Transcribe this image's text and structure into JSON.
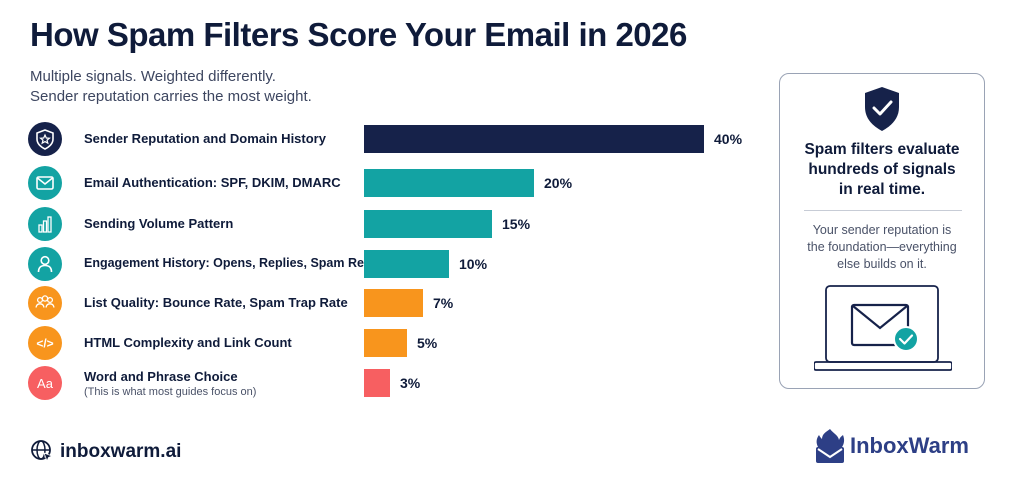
{
  "title": "How Spam Filters Score Your Email in 2026",
  "subtitle_lines": [
    "Multiple signals. Weighted differently.",
    "Sender reputation carries the most weight."
  ],
  "chart_data": {
    "type": "bar",
    "orientation": "horizontal",
    "categories": [
      "Sender Reputation and Domain History",
      "Email Authentication: SPF, DKIM, DMARC",
      "Sending Volume Pattern",
      "Engagement History: Opens, Replies, Spam Reports",
      "List Quality: Bounce Rate, Spam Trap Rate",
      "HTML Complexity and Link Count",
      "Word and Phrase Choice"
    ],
    "values": [
      40,
      20,
      15,
      10,
      7,
      5,
      3
    ],
    "value_labels": [
      "40%",
      "20%",
      "15%",
      "10%",
      "7%",
      "5%",
      "3%"
    ],
    "colors": [
      "#16224a",
      "#13a3a3",
      "#13a3a3",
      "#13a3a3",
      "#f8951d",
      "#f8951d",
      "#f75f61"
    ],
    "annotations": [
      "(This is what most guides focus on)"
    ],
    "xlim": [
      0,
      40
    ],
    "grid": false
  },
  "rows": [
    {
      "icon": "shield-star-icon",
      "icon_color": "#16224a"
    },
    {
      "icon": "envelope-icon",
      "icon_color": "#13a3a3"
    },
    {
      "icon": "bar-chart-icon",
      "icon_color": "#13a3a3"
    },
    {
      "icon": "person-icon",
      "icon_color": "#13a3a3"
    },
    {
      "icon": "people-icon",
      "icon_color": "#f8951d"
    },
    {
      "icon": "code-icon",
      "icon_color": "#f8951d"
    },
    {
      "icon": "text-aa-icon",
      "icon_color": "#f75f61"
    }
  ],
  "icon_texts": {
    "code": "</>",
    "aa": "Aa"
  },
  "card": {
    "heading": [
      "Spam filters evaluate",
      "hundreds of signals",
      "in real time."
    ],
    "body": [
      "Your sender reputation is",
      "the foundation—everything",
      "else builds on it."
    ]
  },
  "brand_left": "inboxwarm.ai",
  "brand_right": "InboxWarm",
  "colors": {
    "navy": "#16224a",
    "teal": "#13a3a3",
    "orange": "#f8951d",
    "coral": "#f75f61",
    "brand_blue": "#2d3f86"
  }
}
